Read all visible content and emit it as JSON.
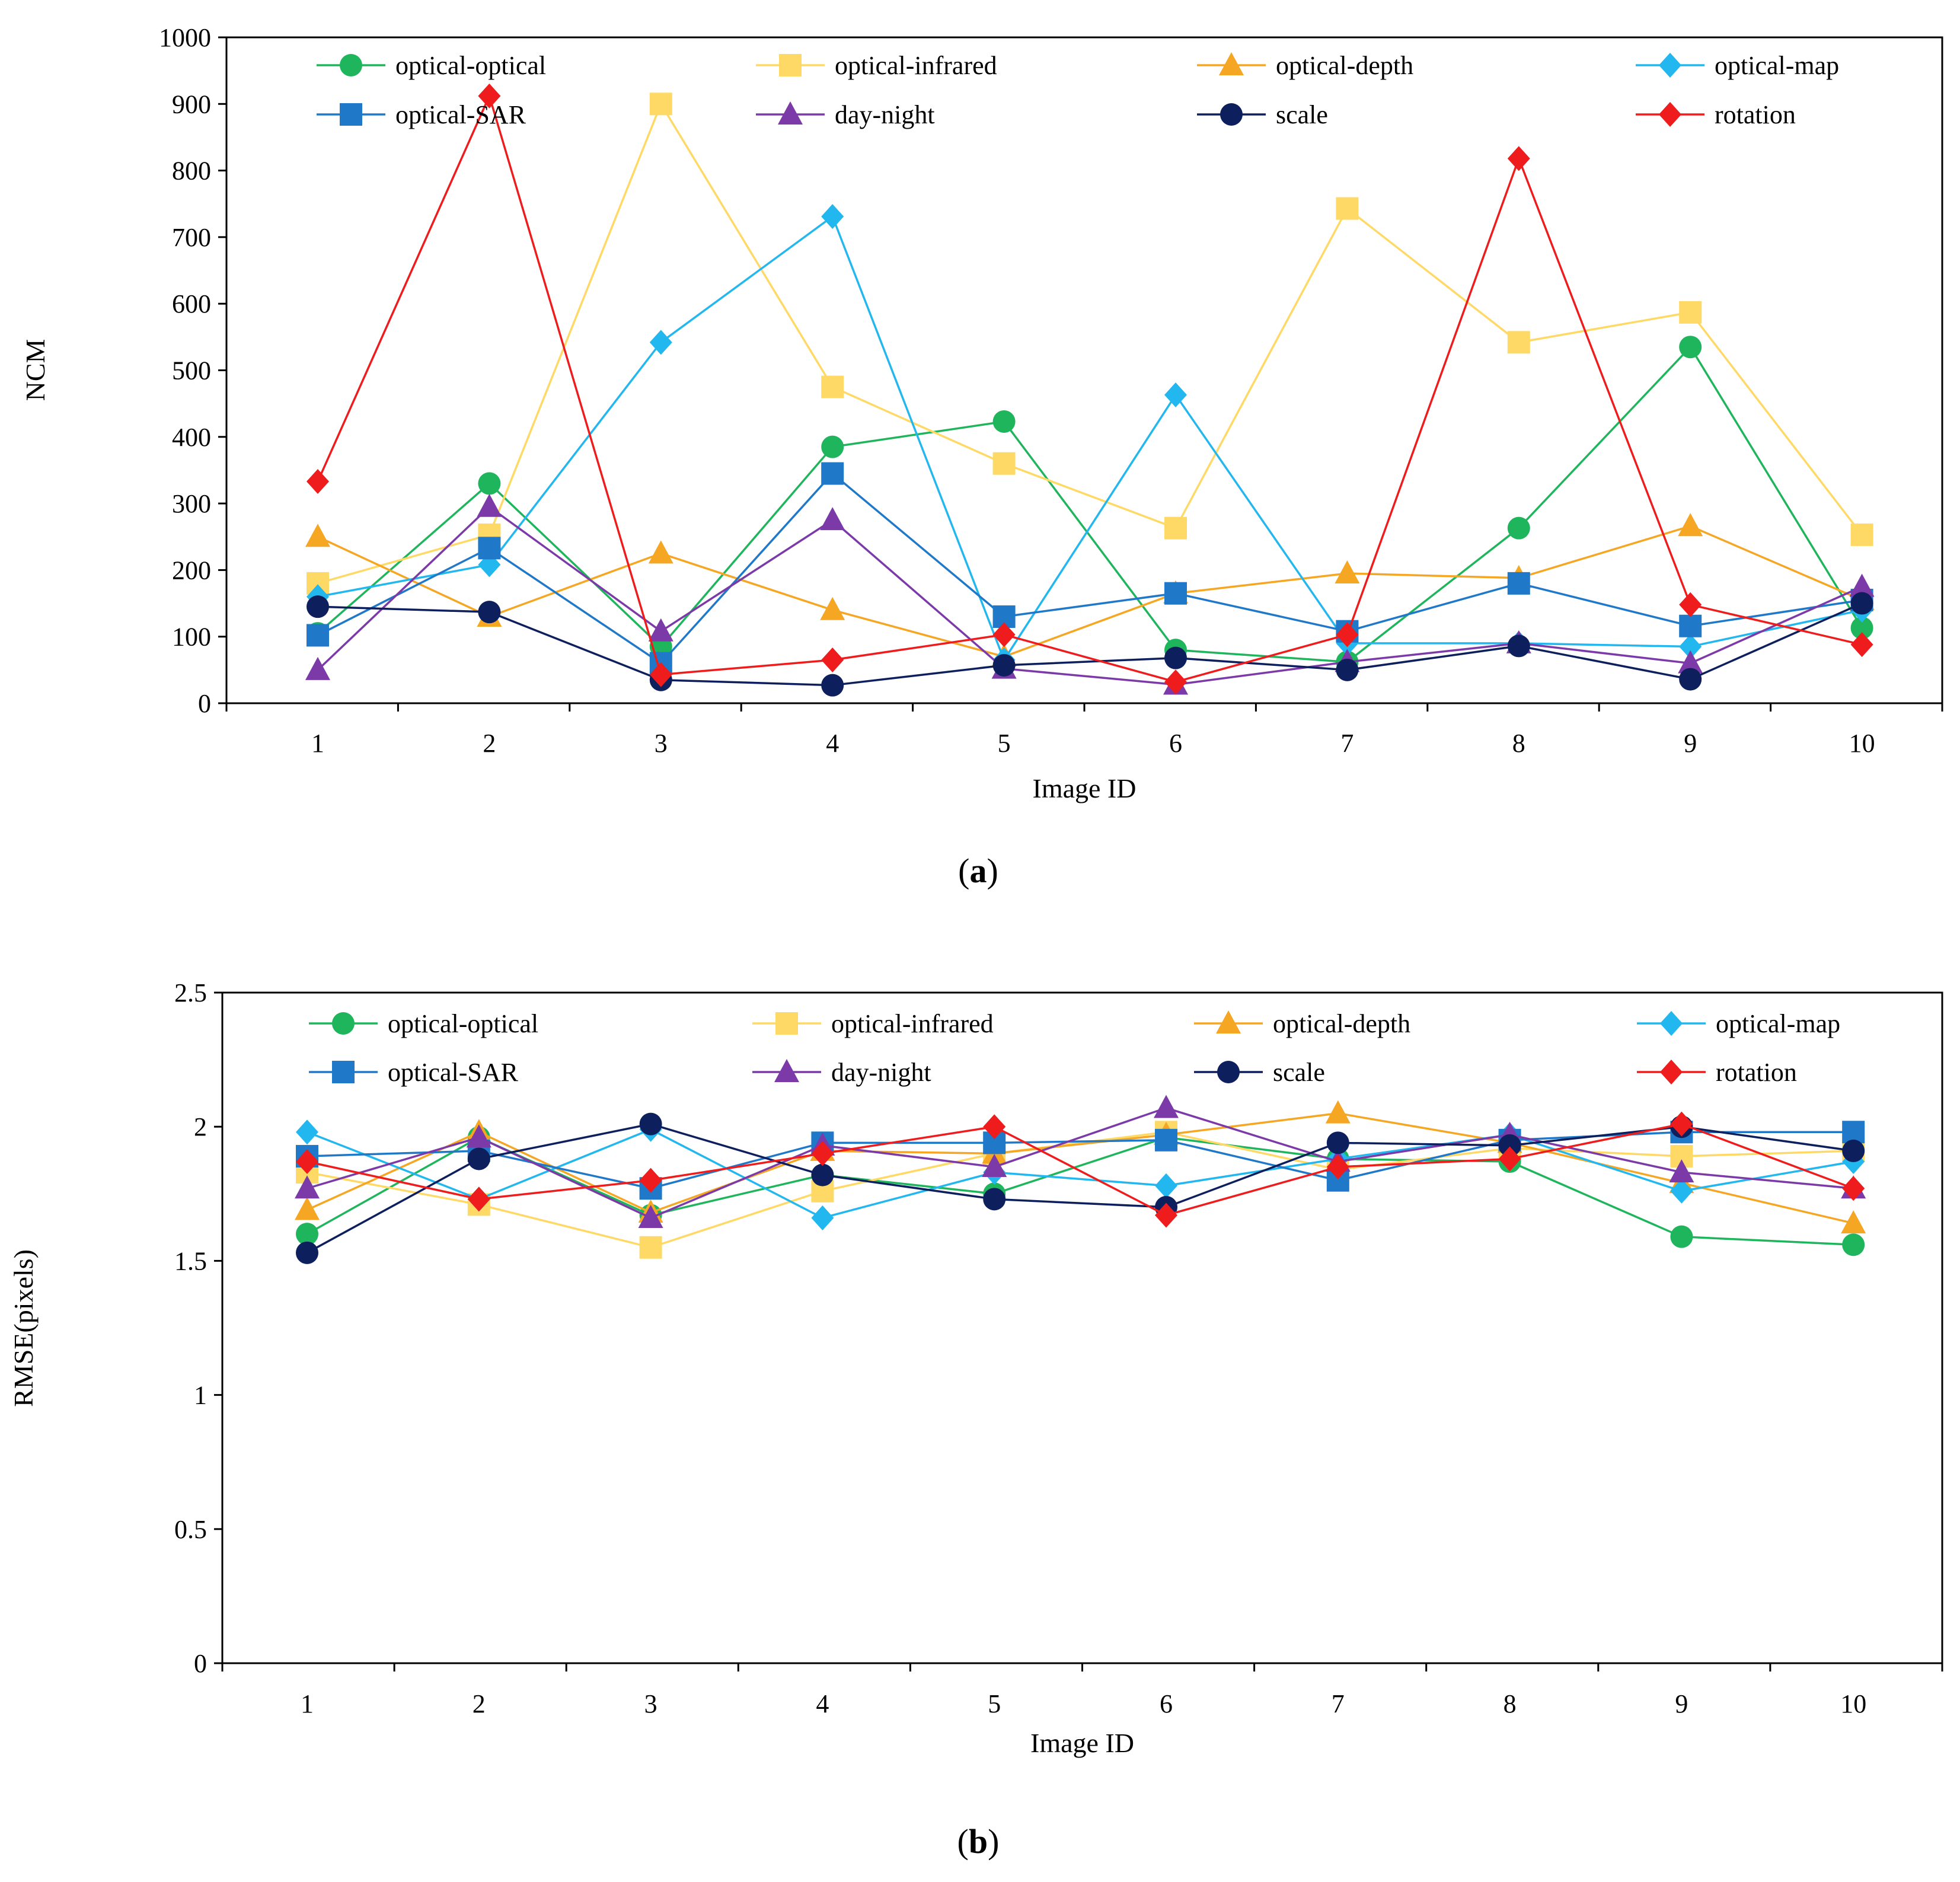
{
  "figure": {
    "caption_a": "a",
    "caption_b": "b"
  },
  "styles": {
    "optical-optical": {
      "color": "#1fb55c",
      "marker": "circle"
    },
    "optical-infrared": {
      "color": "#ffd966",
      "marker": "square"
    },
    "optical-depth": {
      "color": "#f5a623",
      "marker": "triangle"
    },
    "optical-map": {
      "color": "#22b7ee",
      "marker": "diamond"
    },
    "optical-SAR": {
      "color": "#1f78c8",
      "marker": "square"
    },
    "day-night": {
      "color": "#7b3aa8",
      "marker": "triangle"
    },
    "scale": {
      "color": "#0d1f5c",
      "marker": "circle"
    },
    "rotation": {
      "color": "#ee1c1c",
      "marker": "diamond"
    }
  },
  "chart_data": [
    {
      "type": "line",
      "title": "",
      "xlabel": "Image ID",
      "ylabel": "NCM",
      "categories": [
        "1",
        "2",
        "3",
        "4",
        "5",
        "6",
        "7",
        "8",
        "9",
        "10"
      ],
      "ylim": [
        0,
        1000
      ],
      "yticks": [
        "0",
        "100",
        "200",
        "300",
        "400",
        "500",
        "600",
        "700",
        "800",
        "900",
        "1000"
      ],
      "legend": "top, 4 columns",
      "series": [
        {
          "name": "optical-optical",
          "values": [
            105,
            330,
            85,
            385,
            423,
            80,
            62,
            263,
            535,
            113
          ]
        },
        {
          "name": "optical-infrared",
          "values": [
            180,
            253,
            900,
            475,
            360,
            263,
            743,
            542,
            587,
            253
          ]
        },
        {
          "name": "optical-depth",
          "values": [
            250,
            130,
            225,
            140,
            70,
            165,
            195,
            188,
            266,
            155
          ]
        },
        {
          "name": "optical-map",
          "values": [
            160,
            208,
            542,
            731,
            65,
            463,
            90,
            90,
            85,
            140
          ]
        },
        {
          "name": "optical-SAR",
          "values": [
            102,
            233,
            60,
            345,
            130,
            165,
            108,
            180,
            116,
            155
          ]
        },
        {
          "name": "day-night",
          "values": [
            50,
            295,
            108,
            275,
            52,
            28,
            62,
            90,
            60,
            175
          ]
        },
        {
          "name": "scale",
          "values": [
            145,
            137,
            35,
            27,
            57,
            68,
            50,
            86,
            36,
            150
          ]
        },
        {
          "name": "rotation",
          "values": [
            333,
            912,
            43,
            65,
            103,
            32,
            103,
            818,
            148,
            88
          ]
        }
      ]
    },
    {
      "type": "line",
      "title": "",
      "xlabel": "Image ID",
      "ylabel": "RMSE(pixels)",
      "categories": [
        "1",
        "2",
        "3",
        "4",
        "5",
        "6",
        "7",
        "8",
        "9",
        "10"
      ],
      "ylim": [
        0,
        2.5
      ],
      "yticks": [
        "0",
        "0.5",
        "1",
        "1.5",
        "2",
        "2.5"
      ],
      "legend": "top, 4 columns",
      "series": [
        {
          "name": "optical-optical",
          "values": [
            1.6,
            1.96,
            1.67,
            1.82,
            1.75,
            1.96,
            1.88,
            1.87,
            1.59,
            1.56
          ]
        },
        {
          "name": "optical-infrared",
          "values": [
            1.83,
            1.71,
            1.55,
            1.76,
            1.9,
            1.98,
            1.84,
            1.92,
            1.89,
            1.91
          ]
        },
        {
          "name": "optical-depth",
          "values": [
            1.69,
            1.98,
            1.68,
            1.91,
            1.9,
            1.97,
            2.05,
            1.94,
            1.79,
            1.64
          ]
        },
        {
          "name": "optical-map",
          "values": [
            1.98,
            1.73,
            1.99,
            1.66,
            1.83,
            1.78,
            1.88,
            1.97,
            1.76,
            1.87
          ]
        },
        {
          "name": "optical-SAR",
          "values": [
            1.89,
            1.91,
            1.77,
            1.94,
            1.94,
            1.95,
            1.8,
            1.95,
            1.98,
            1.98
          ]
        },
        {
          "name": "day-night",
          "values": [
            1.77,
            1.96,
            1.66,
            1.93,
            1.85,
            2.07,
            1.87,
            1.97,
            1.83,
            1.77
          ]
        },
        {
          "name": "scale",
          "values": [
            1.53,
            1.88,
            2.01,
            1.82,
            1.73,
            1.7,
            1.94,
            1.93,
            2.0,
            1.91
          ]
        },
        {
          "name": "rotation",
          "values": [
            1.87,
            1.73,
            1.8,
            1.9,
            2.0,
            1.67,
            1.85,
            1.88,
            2.01,
            1.77
          ]
        }
      ]
    }
  ]
}
